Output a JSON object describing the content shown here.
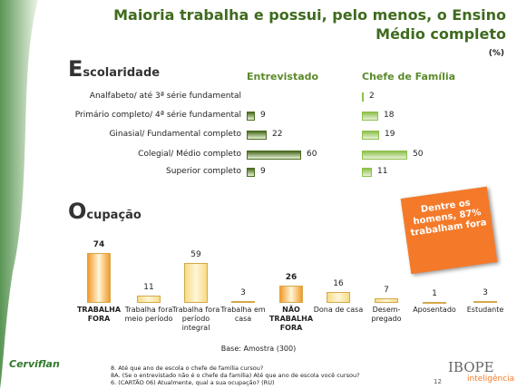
{
  "title": "Maioria trabalha e possui, pelo menos, o Ensino Médio completo",
  "unit": "(%)",
  "callout": "Dentre os homens, 87% trabalham fora",
  "base": "Base: Amostra (300)",
  "footnotes": [
    "8. Até que ano de escola o chefe de família cursou?",
    "8A. (Se o entrevistado não é o chefe da família) Até que ano de escola você cursou?",
    "6. (CARTÃO 06) Atualmente, qual a sua ocupação? (RU)"
  ],
  "logo": "Cerviflan",
  "page_number": "12",
  "brand": "IBOPE",
  "brand_sub": "inteligência",
  "chart_data": [
    {
      "type": "hbar",
      "title": "Escolaridade",
      "categories": [
        "Analfabeto/ até 3ª série fundamental",
        "Primário completo/ 4ª série fundamental",
        "Ginasial/ Fundamental completo",
        "Colegial/ Médio completo",
        "Superior completo"
      ],
      "series": [
        {
          "name": "Entrevistado",
          "color": "#4a6b1f",
          "values": [
            null,
            9,
            22,
            60,
            9
          ]
        },
        {
          "name": "Chefe de Família",
          "color": "#8dc04a",
          "values": [
            2,
            18,
            19,
            50,
            11
          ]
        }
      ],
      "xlim": [
        0,
        100
      ]
    },
    {
      "type": "bar",
      "title": "Ocupação",
      "categories": [
        "TRABALHA FORA",
        "Trabalha fora meio período",
        "Trabalha fora período integral",
        "Trabalha em casa",
        "NÃO TRABALHA FORA",
        "Dona de casa",
        "Desem-pregado",
        "Aposentado",
        "Estudante"
      ],
      "values": [
        74,
        11,
        59,
        3,
        26,
        16,
        7,
        1,
        3
      ],
      "color": "#f6dc86",
      "highlight_color": "#f39a2b",
      "highlight": [
        0,
        4
      ],
      "ylim": [
        0,
        100
      ]
    }
  ]
}
